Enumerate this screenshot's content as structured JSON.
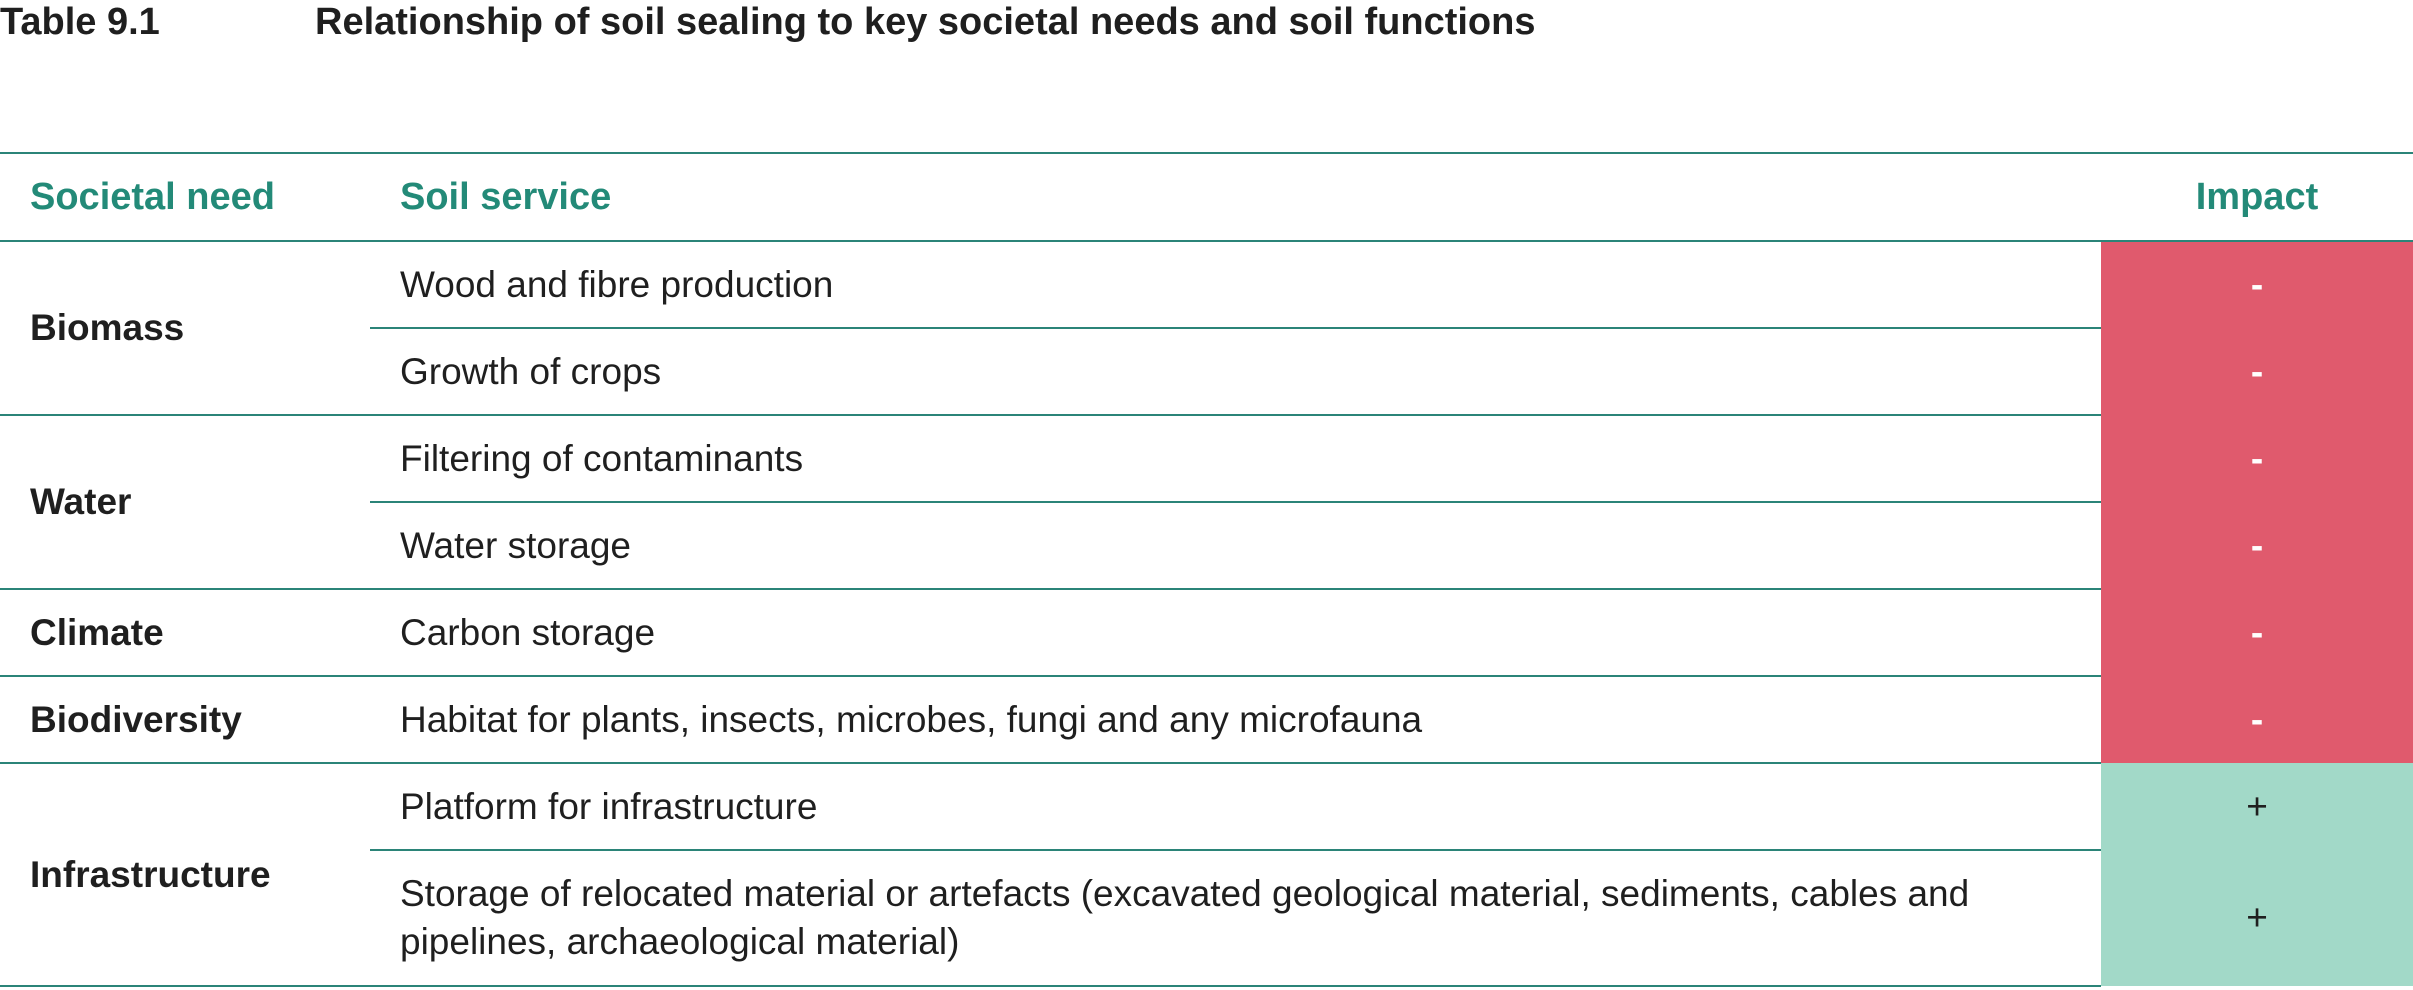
{
  "caption": {
    "number": "Table 9.1",
    "title": "Relationship of soil sealing to key societal needs and soil functions"
  },
  "table": {
    "headers": {
      "need": "Societal need",
      "service": "Soil service",
      "impact": "Impact"
    },
    "groups": [
      {
        "need": "Biomass",
        "rows": [
          {
            "service": "Wood and fibre production",
            "impact": "-"
          },
          {
            "service": "Growth of crops",
            "impact": "-"
          }
        ]
      },
      {
        "need": "Water",
        "rows": [
          {
            "service": "Filtering of contaminants",
            "impact": "-"
          },
          {
            "service": "Water storage",
            "impact": "-"
          }
        ]
      },
      {
        "need": "Climate",
        "rows": [
          {
            "service": "Carbon storage",
            "impact": "-"
          }
        ]
      },
      {
        "need": "Biodiversity",
        "rows": [
          {
            "service": "Habitat for plants, insects, microbes, fungi and any microfauna",
            "impact": "-"
          }
        ]
      },
      {
        "need": "Infrastructure",
        "rows": [
          {
            "service": "Platform for infrastructure",
            "impact": "+"
          },
          {
            "service": "Storage of relocated material or artefacts (excavated geological material, sediments, cables and pipelines, archaeological material)",
            "impact": "+"
          }
        ]
      }
    ]
  },
  "colors": {
    "accent": "#238a78",
    "negative_impact": "#e05a6d",
    "positive_impact": "#a2d9c8"
  }
}
